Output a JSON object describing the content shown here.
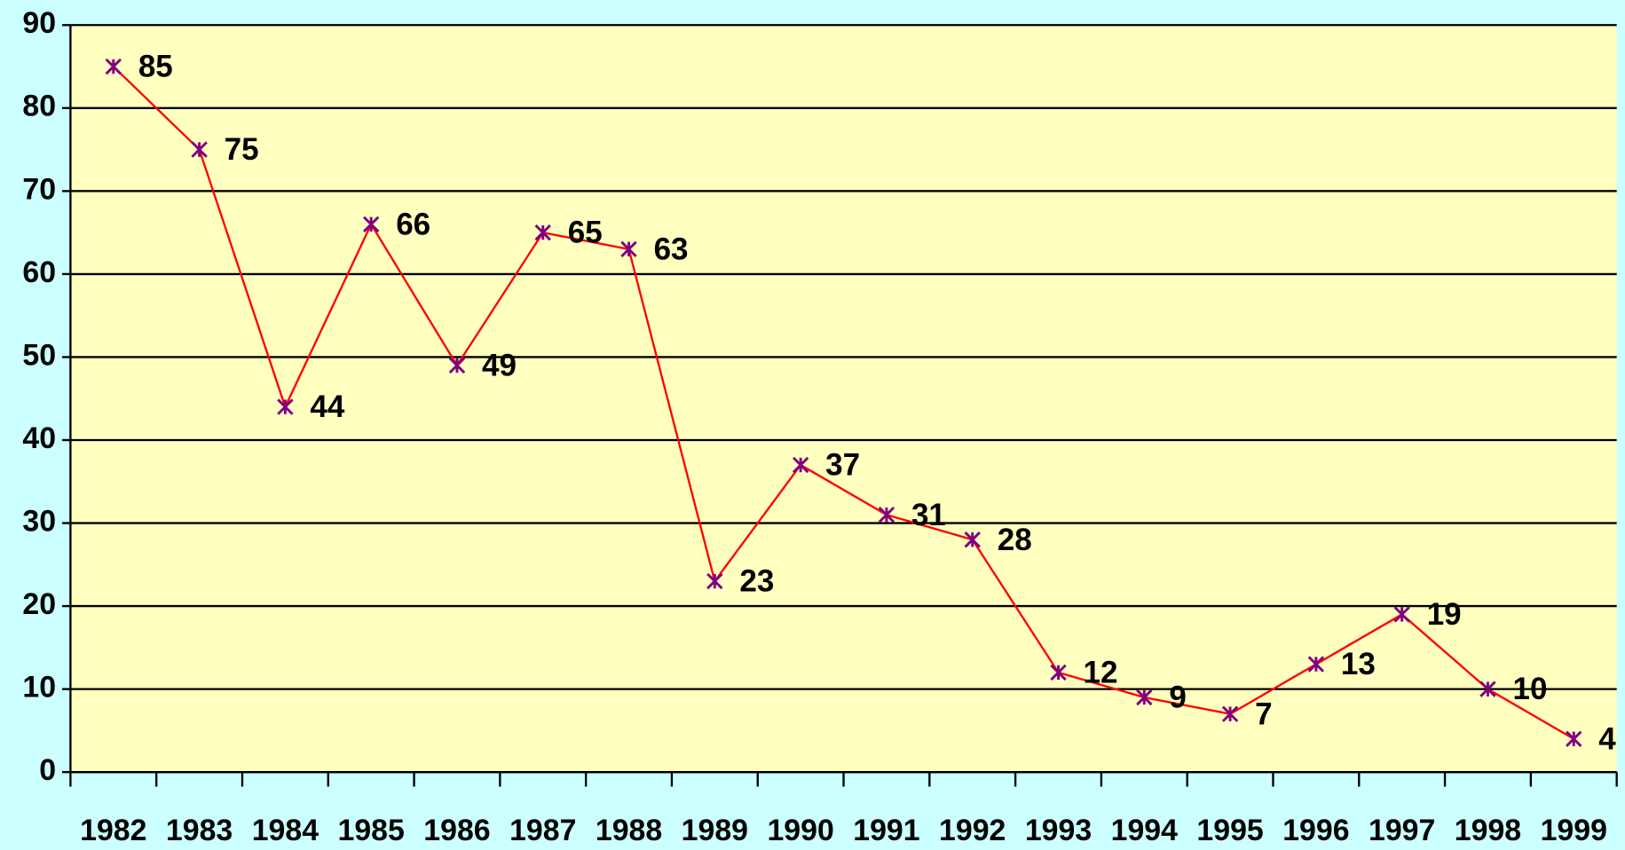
{
  "chart_data": {
    "type": "line",
    "categories": [
      "1982",
      "1983",
      "1984",
      "1985",
      "1986",
      "1987",
      "1988",
      "1989",
      "1990",
      "1991",
      "1992",
      "1993",
      "1994",
      "1995",
      "1996",
      "1997",
      "1998",
      "1999"
    ],
    "values": [
      85,
      75,
      44,
      66,
      49,
      65,
      63,
      23,
      37,
      31,
      28,
      12,
      9,
      7,
      13,
      19,
      10,
      4
    ],
    "color": "#ff0000",
    "marker_color": "#800080",
    "plot_background": "#ffffc0",
    "ylim": [
      0,
      90
    ],
    "yticks": [
      0,
      10,
      20,
      30,
      40,
      50,
      60,
      70,
      80,
      90
    ],
    "grid": true
  }
}
